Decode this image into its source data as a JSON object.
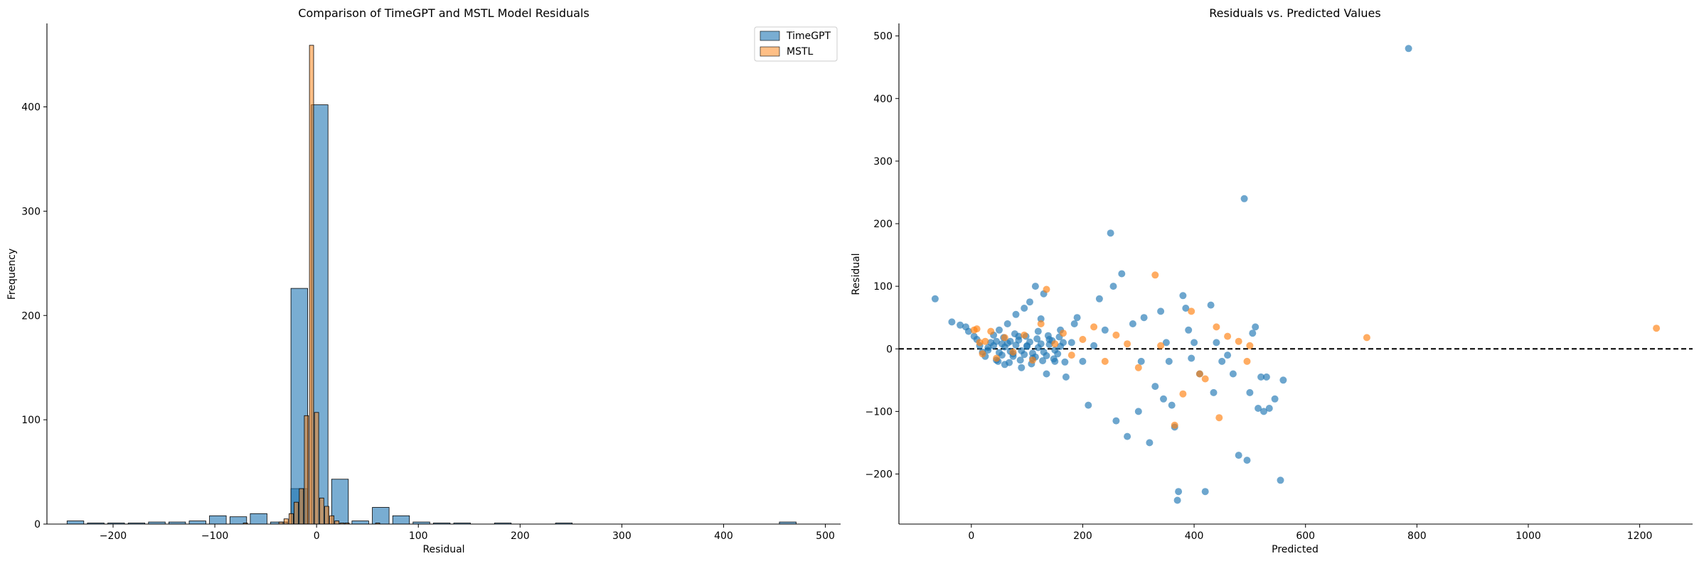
{
  "chart_data": [
    {
      "type": "bar",
      "title": "Comparison of TimeGPT and MSTL Model Residuals",
      "xlabel": "Residual",
      "ylabel": "Frequency",
      "xlim": [
        -265,
        515
      ],
      "ylim": [
        0,
        480
      ],
      "xticks": [
        -200,
        -100,
        0,
        100,
        200,
        300,
        400,
        500
      ],
      "yticks": [
        0,
        100,
        200,
        300,
        400
      ],
      "grid": false,
      "legend": "top-right",
      "series": [
        {
          "name": "TimeGPT",
          "color": "#1f77b4",
          "bin_width": 20,
          "bins": [
            {
              "x": -237,
              "count": 3
            },
            {
              "x": -217,
              "count": 1
            },
            {
              "x": -197,
              "count": 1
            },
            {
              "x": -177,
              "count": 1
            },
            {
              "x": -157,
              "count": 2
            },
            {
              "x": -137,
              "count": 2
            },
            {
              "x": -117,
              "count": 3
            },
            {
              "x": -97,
              "count": 8
            },
            {
              "x": -77,
              "count": 7
            },
            {
              "x": -57,
              "count": 10
            },
            {
              "x": -37,
              "count": 2
            },
            {
              "x": -17,
              "count": 34
            },
            {
              "x": -17,
              "count": 226
            },
            {
              "x": 3,
              "count": 402
            },
            {
              "x": 23,
              "count": 43
            },
            {
              "x": 43,
              "count": 3
            },
            {
              "x": 63,
              "count": 16
            },
            {
              "x": 83,
              "count": 8
            },
            {
              "x": 103,
              "count": 2
            },
            {
              "x": 123,
              "count": 1
            },
            {
              "x": 143,
              "count": 1
            },
            {
              "x": 183,
              "count": 1
            },
            {
              "x": 243,
              "count": 1
            },
            {
              "x": 463,
              "count": 2
            }
          ]
        },
        {
          "name": "MSTL",
          "color": "#ff7f0e",
          "bin_width": 5,
          "bins": [
            {
              "x": -70,
              "count": 1
            },
            {
              "x": -35,
              "count": 2
            },
            {
              "x": -30,
              "count": 5
            },
            {
              "x": -25,
              "count": 10
            },
            {
              "x": -20,
              "count": 21
            },
            {
              "x": -15,
              "count": 34
            },
            {
              "x": -10,
              "count": 104
            },
            {
              "x": -5,
              "count": 459
            },
            {
              "x": 0,
              "count": 107
            },
            {
              "x": 5,
              "count": 25
            },
            {
              "x": 10,
              "count": 17
            },
            {
              "x": 15,
              "count": 8
            },
            {
              "x": 20,
              "count": 3
            },
            {
              "x": 25,
              "count": 1
            },
            {
              "x": 30,
              "count": 1
            },
            {
              "x": 60,
              "count": 1
            }
          ]
        }
      ]
    },
    {
      "type": "scatter",
      "title": "Residuals vs. Predicted Values",
      "xlabel": "Predicted",
      "ylabel": "Residual",
      "xlim": [
        -130,
        1295
      ],
      "ylim": [
        -280,
        520
      ],
      "xticks": [
        0,
        200,
        400,
        600,
        800,
        1000,
        1200
      ],
      "yticks": [
        -200,
        -100,
        0,
        100,
        200,
        300,
        400,
        500
      ],
      "grid": false,
      "reference_line": {
        "y": 0,
        "style": "dashed",
        "color": "#000000"
      },
      "series": [
        {
          "name": "TimeGPT",
          "color": "#1f77b4",
          "points": [
            [
              -65,
              80
            ],
            [
              -35,
              43
            ],
            [
              -20,
              38
            ],
            [
              -10,
              35
            ],
            [
              -5,
              28
            ],
            [
              5,
              20
            ],
            [
              10,
              15
            ],
            [
              15,
              5
            ],
            [
              20,
              -5
            ],
            [
              25,
              -12
            ],
            [
              30,
              2
            ],
            [
              35,
              10
            ],
            [
              40,
              22
            ],
            [
              45,
              -18
            ],
            [
              50,
              30
            ],
            [
              55,
              8
            ],
            [
              60,
              -25
            ],
            [
              65,
              40
            ],
            [
              70,
              12
            ],
            [
              75,
              -8
            ],
            [
              80,
              55
            ],
            [
              85,
              20
            ],
            [
              90,
              -30
            ],
            [
              95,
              65
            ],
            [
              100,
              5
            ],
            [
              105,
              75
            ],
            [
              110,
              -15
            ],
            [
              115,
              100
            ],
            [
              120,
              28
            ],
            [
              125,
              48
            ],
            [
              130,
              88
            ],
            [
              135,
              -40
            ],
            [
              140,
              15
            ],
            [
              150,
              -20
            ],
            [
              160,
              30
            ],
            [
              170,
              -45
            ],
            [
              180,
              10
            ],
            [
              185,
              40
            ],
            [
              190,
              50
            ],
            [
              200,
              -20
            ],
            [
              210,
              -90
            ],
            [
              220,
              5
            ],
            [
              230,
              80
            ],
            [
              240,
              30
            ],
            [
              250,
              185
            ],
            [
              255,
              100
            ],
            [
              260,
              -115
            ],
            [
              270,
              120
            ],
            [
              280,
              -140
            ],
            [
              290,
              40
            ],
            [
              300,
              -100
            ],
            [
              305,
              -20
            ],
            [
              310,
              50
            ],
            [
              320,
              -150
            ],
            [
              330,
              -60
            ],
            [
              340,
              60
            ],
            [
              345,
              -80
            ],
            [
              350,
              10
            ],
            [
              355,
              -20
            ],
            [
              360,
              -90
            ],
            [
              365,
              -125
            ],
            [
              370,
              -242
            ],
            [
              372,
              -228
            ],
            [
              380,
              85
            ],
            [
              385,
              65
            ],
            [
              390,
              30
            ],
            [
              395,
              -15
            ],
            [
              400,
              10
            ],
            [
              410,
              -40
            ],
            [
              420,
              -228
            ],
            [
              430,
              70
            ],
            [
              435,
              -70
            ],
            [
              440,
              10
            ],
            [
              450,
              -20
            ],
            [
              460,
              -10
            ],
            [
              470,
              -40
            ],
            [
              480,
              -170
            ],
            [
              490,
              240
            ],
            [
              495,
              -178
            ],
            [
              500,
              -70
            ],
            [
              505,
              25
            ],
            [
              510,
              35
            ],
            [
              515,
              -95
            ],
            [
              520,
              -45
            ],
            [
              525,
              -100
            ],
            [
              530,
              -45
            ],
            [
              535,
              -95
            ],
            [
              545,
              -80
            ],
            [
              555,
              -210
            ],
            [
              560,
              -50
            ],
            [
              785,
              480
            ],
            [
              30,
              -2
            ],
            [
              40,
              5
            ],
            [
              50,
              -6
            ],
            [
              60,
              3
            ],
            [
              70,
              -4
            ],
            [
              80,
              6
            ],
            [
              90,
              -3
            ],
            [
              100,
              4
            ],
            [
              110,
              -7
            ],
            [
              120,
              2
            ],
            [
              130,
              -5
            ],
            [
              140,
              7
            ],
            [
              150,
              -2
            ],
            [
              160,
              4
            ],
            [
              45,
              12
            ],
            [
              55,
              -10
            ],
            [
              65,
              9
            ],
            [
              75,
              -12
            ],
            [
              85,
              14
            ],
            [
              95,
              -9
            ],
            [
              105,
              11
            ],
            [
              115,
              -13
            ],
            [
              125,
              8
            ],
            [
              135,
              -11
            ],
            [
              145,
              13
            ],
            [
              155,
              -8
            ],
            [
              165,
              10
            ],
            [
              48,
              -20
            ],
            [
              58,
              18
            ],
            [
              68,
              -22
            ],
            [
              78,
              24
            ],
            [
              88,
              -18
            ],
            [
              98,
              20
            ],
            [
              108,
              -24
            ],
            [
              118,
              16
            ],
            [
              128,
              -19
            ],
            [
              138,
              21
            ],
            [
              148,
              -16
            ],
            [
              158,
              19
            ],
            [
              168,
              -21
            ]
          ]
        },
        {
          "name": "MSTL",
          "color": "#ff7f0e",
          "points": [
            [
              5,
              30
            ],
            [
              10,
              32
            ],
            [
              15,
              10
            ],
            [
              20,
              -8
            ],
            [
              25,
              12
            ],
            [
              35,
              28
            ],
            [
              45,
              -15
            ],
            [
              60,
              18
            ],
            [
              75,
              -5
            ],
            [
              95,
              22
            ],
            [
              110,
              -18
            ],
            [
              125,
              40
            ],
            [
              135,
              95
            ],
            [
              150,
              8
            ],
            [
              165,
              25
            ],
            [
              180,
              -10
            ],
            [
              200,
              15
            ],
            [
              220,
              35
            ],
            [
              240,
              -20
            ],
            [
              260,
              22
            ],
            [
              280,
              8
            ],
            [
              300,
              -30
            ],
            [
              330,
              118
            ],
            [
              340,
              5
            ],
            [
              365,
              -122
            ],
            [
              380,
              -72
            ],
            [
              395,
              60
            ],
            [
              410,
              -40
            ],
            [
              420,
              -48
            ],
            [
              440,
              35
            ],
            [
              445,
              -110
            ],
            [
              460,
              20
            ],
            [
              480,
              12
            ],
            [
              495,
              -20
            ],
            [
              500,
              5
            ],
            [
              710,
              18
            ],
            [
              1230,
              33
            ]
          ]
        }
      ]
    }
  ]
}
